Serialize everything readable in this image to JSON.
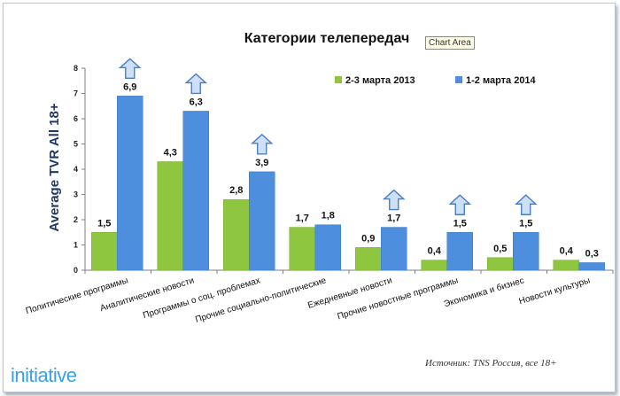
{
  "chart_data": {
    "type": "bar",
    "title": "Категории телепередач",
    "ylabel": "Average TVR All 18+",
    "xlabel": "",
    "ylim": [
      0,
      8
    ],
    "yticks": [
      "0",
      "1",
      "2",
      "3",
      "4",
      "5",
      "6",
      "7",
      "8"
    ],
    "legend_position": "top-right",
    "categories": [
      "Политические программы",
      "Аналитические новости",
      "Программы о соц. проблемах",
      "Прочие социально-политические",
      "Ежедневные новости",
      "Прочие новостные программы",
      "Экономика и бизнес",
      "Новости культуры"
    ],
    "series": [
      {
        "name": "2-3 марта 2013",
        "color": "#8fc640",
        "values": [
          1.5,
          4.3,
          2.8,
          1.7,
          0.9,
          0.4,
          0.5,
          0.4
        ],
        "labels": [
          "1,5",
          "4,3",
          "2,8",
          "1,7",
          "0,9",
          "0,4",
          "0,5",
          "0,4"
        ]
      },
      {
        "name": "1-2 марта 2014",
        "color": "#4d8fdc",
        "values": [
          6.9,
          6.3,
          3.9,
          1.8,
          1.7,
          1.5,
          1.5,
          0.3
        ],
        "labels": [
          "6,9",
          "6,3",
          "3,9",
          "1,8",
          "1,7",
          "1,5",
          "1,5",
          "0,3"
        ]
      }
    ],
    "growth_arrows": [
      true,
      true,
      true,
      false,
      true,
      true,
      true,
      false
    ],
    "grid": false
  },
  "tooltip": "Chart Area",
  "source": "Источник: TNS Россия, все 18+",
  "brand": "initiative",
  "colors": {
    "arrow_fill": "#cfe0f6",
    "arrow_stroke": "#4a7fc1",
    "axis_title": "#1f3864"
  }
}
